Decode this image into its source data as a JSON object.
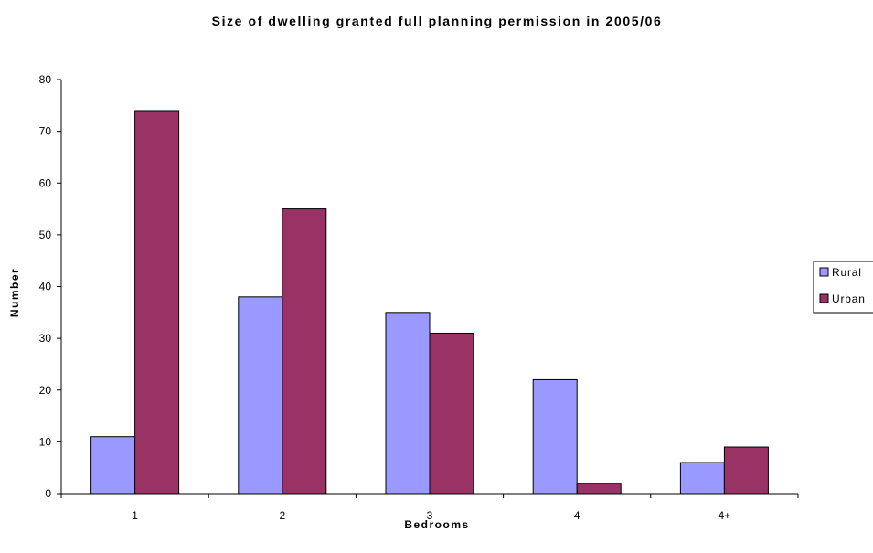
{
  "chart_data": {
    "type": "bar",
    "title": "Size of dwelling granted full planning permission in 2005/06",
    "xlabel": "Bedrooms",
    "ylabel": "Number",
    "categories": [
      "1",
      "2",
      "3",
      "4",
      "4+"
    ],
    "series": [
      {
        "name": "Rural",
        "values": [
          11,
          38,
          35,
          22,
          6
        ],
        "color": "#9999FF"
      },
      {
        "name": "Urban",
        "values": [
          74,
          55,
          31,
          2,
          9
        ],
        "color": "#993366"
      }
    ],
    "ylim": [
      0,
      80
    ],
    "yticks": [
      0,
      10,
      20,
      30,
      40,
      50,
      60,
      70,
      80
    ],
    "grid": false,
    "legend": "right"
  }
}
